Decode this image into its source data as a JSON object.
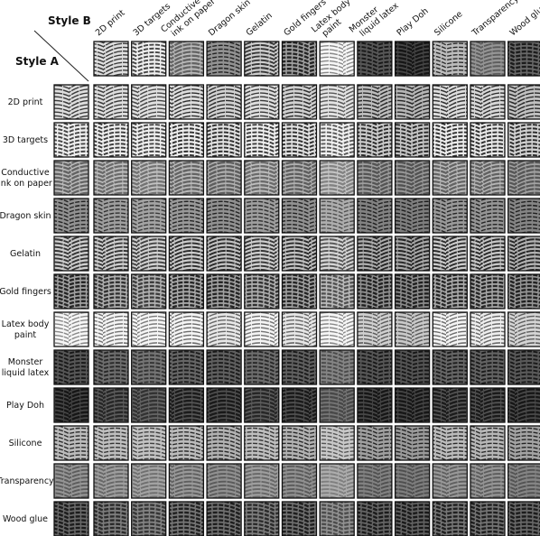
{
  "header": {
    "style_b": "Style B",
    "style_a": "Style A"
  },
  "styles": [
    [
      "2D print"
    ],
    [
      "3D targets"
    ],
    [
      "Conductive",
      "ink on paper"
    ],
    [
      "Dragon skin"
    ],
    [
      "Gelatin"
    ],
    [
      "Gold fingers"
    ],
    [
      "Latex body",
      "paint"
    ],
    [
      "Monster",
      "liquid latex"
    ],
    [
      "Play Doh"
    ],
    [
      "Silicone"
    ],
    [
      "Transparency"
    ],
    [
      "Wood glue"
    ]
  ]
}
